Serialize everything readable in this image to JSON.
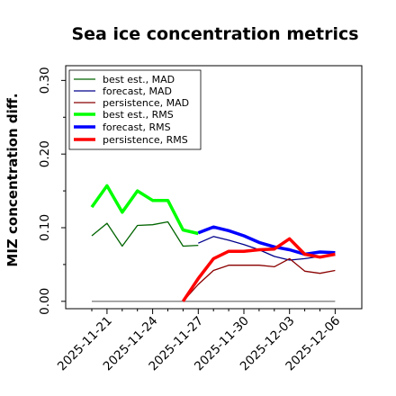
{
  "chart_data": {
    "type": "line",
    "title": "Sea ice concentration metrics",
    "ylabel": "MIZ concentration diff.",
    "xlabel": "",
    "ylim": [
      -0.01,
      0.32
    ],
    "yticks": [
      0.0,
      0.1,
      0.2,
      0.3
    ],
    "ytick_labels": [
      "0.00",
      "0.10",
      "0.20",
      "0.30"
    ],
    "x": [
      "2025-11-20",
      "2025-11-21",
      "2025-11-22",
      "2025-11-23",
      "2025-11-24",
      "2025-11-25",
      "2025-11-26",
      "2025-11-27",
      "2025-11-28",
      "2025-11-29",
      "2025-11-30",
      "2025-12-01",
      "2025-12-02",
      "2025-12-03",
      "2025-12-04",
      "2025-12-05",
      "2025-12-06"
    ],
    "xtick_labels": [
      "2025-11-21",
      "2025-11-24",
      "2025-11-27",
      "2025-11-30",
      "2025-12-03",
      "2025-12-06"
    ],
    "xtick_label_colors": [
      "#000000",
      "#000000",
      "#008000",
      "#000000",
      "#000000",
      "#000000"
    ],
    "legend_position": "upper-left",
    "grid": false,
    "series": [
      {
        "name": "best est., MAD",
        "color": "#006400",
        "width": 1.3,
        "values": [
          0.089,
          0.106,
          0.075,
          0.103,
          0.104,
          0.108,
          0.075,
          0.076,
          null,
          null,
          null,
          null,
          null,
          null,
          null,
          null,
          null
        ]
      },
      {
        "name": "forecast,  MAD",
        "color": "#00008b",
        "width": 1.3,
        "values": [
          null,
          null,
          null,
          null,
          null,
          null,
          null,
          0.079,
          0.088,
          0.083,
          0.077,
          0.07,
          0.061,
          0.056,
          0.058,
          0.061,
          0.063
        ]
      },
      {
        "name": "persistence, MAD",
        "color": "#8b0000",
        "width": 1.3,
        "values": [
          null,
          null,
          null,
          null,
          null,
          null,
          0.0,
          0.023,
          0.042,
          0.049,
          0.049,
          0.049,
          0.047,
          0.058,
          0.041,
          0.038,
          0.042
        ]
      },
      {
        "name": "best est., RMS",
        "color": "#00ff00",
        "width": 3.5,
        "values": [
          0.128,
          0.157,
          0.121,
          0.15,
          0.137,
          0.137,
          0.097,
          0.092,
          null,
          null,
          null,
          null,
          null,
          null,
          null,
          null,
          null
        ]
      },
      {
        "name": "forecast,  RMS",
        "color": "#0000ff",
        "width": 3.5,
        "values": [
          null,
          null,
          null,
          null,
          null,
          null,
          null,
          0.093,
          0.101,
          0.096,
          0.089,
          0.08,
          0.074,
          0.07,
          0.064,
          0.067,
          0.066
        ]
      },
      {
        "name": "persistence, RMS",
        "color": "#ff0000",
        "width": 3.5,
        "values": [
          null,
          null,
          null,
          null,
          null,
          null,
          0.0,
          0.031,
          0.058,
          0.068,
          0.068,
          0.07,
          0.071,
          0.085,
          0.064,
          0.06,
          0.064
        ]
      },
      {
        "name": "",
        "color": "#808080",
        "width": 1.3,
        "values": [
          0.0,
          0.0,
          0.0,
          0.0,
          0.0,
          0.0,
          0.0,
          0.0,
          0.0,
          0.0,
          0.0,
          0.0,
          0.0,
          0.0,
          0.0,
          0.0,
          0.0
        ]
      }
    ]
  }
}
